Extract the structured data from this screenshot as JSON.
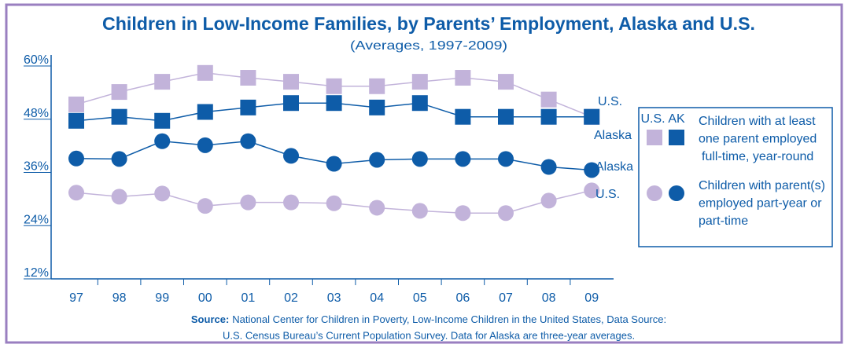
{
  "chart_data": {
    "type": "line",
    "title": "Children in Low-Income Families, by Parents’ Employment, Alaska and U.S.",
    "subtitle": "(Averages, 1997-2009)",
    "categories": [
      "97",
      "98",
      "99",
      "00",
      "01",
      "02",
      "03",
      "04",
      "05",
      "06",
      "07",
      "08",
      "09"
    ],
    "ylim": [
      12,
      60
    ],
    "yticks": [
      {
        "value": 12,
        "label": "12%"
      },
      {
        "value": 24,
        "label": "24%"
      },
      {
        "value": 36,
        "label": "36%"
      },
      {
        "value": 48,
        "label": "48%"
      },
      {
        "value": 60,
        "label": "60%"
      }
    ],
    "series": [
      {
        "name": "U.S.",
        "marker": "square",
        "color": "#c2b3da",
        "values": [
          50.1,
          52.9,
          55.2,
          57.2,
          56.1,
          55.2,
          54.2,
          54.2,
          55.2,
          56.1,
          55.2,
          51.2,
          47.3
        ]
      },
      {
        "name": "Alaska",
        "marker": "square",
        "color": "#0e5ca8",
        "values": [
          46.4,
          47.3,
          46.4,
          48.4,
          49.4,
          50.4,
          50.4,
          49.4,
          50.4,
          47.3,
          47.3,
          47.3,
          47.3
        ]
      },
      {
        "name": "Alaska",
        "marker": "circle",
        "color": "#0e5ca8",
        "values": [
          37.9,
          37.8,
          41.8,
          40.9,
          41.8,
          38.5,
          36.7,
          37.6,
          37.8,
          37.8,
          37.8,
          36.0,
          35.3
        ]
      },
      {
        "name": "U.S.",
        "marker": "circle",
        "color": "#c2b3da",
        "values": [
          30.2,
          29.3,
          30.0,
          27.2,
          28.0,
          28.0,
          27.8,
          26.8,
          26.1,
          25.6,
          25.6,
          28.4,
          30.7
        ]
      }
    ],
    "legend": {
      "headers": [
        "U.S.",
        "AK"
      ],
      "entries": [
        {
          "marker": "square",
          "lines": [
            "Children with at least",
            "one parent employed",
            "full-time, year-round"
          ]
        },
        {
          "marker": "circle",
          "lines": [
            "Children with parent(s)",
            "employed part-year or",
            "part-time"
          ]
        }
      ]
    },
    "source_label": "Source:",
    "source_lines": [
      "National  Center for Children in Poverty, Low-Income Children in the United States, Data Source:",
      "U.S. Census Bureau’s Current Population Survey. Data for Alaska are three-year averages."
    ]
  }
}
